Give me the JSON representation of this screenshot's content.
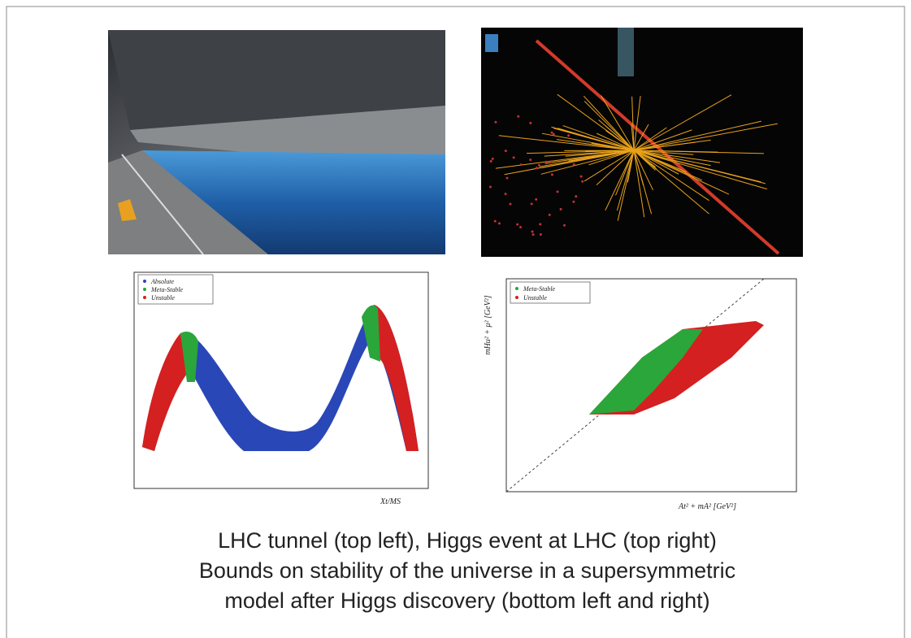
{
  "bottom_left": {
    "legend": [
      "Absolute",
      "Meta-Stable",
      "Unstable"
    ],
    "x_label": "Xt/MS"
  },
  "bottom_right": {
    "legend": [
      "Meta-Stable",
      "Unstable"
    ],
    "x_label": "At² + mA² [GeV²]",
    "y_label": "mHu² + μ² [GeV²]"
  },
  "caption": [
    "LHC tunnel (top left), Higgs event at LHC (top right)",
    "Bounds on stability of the universe in a supersymmetric",
    "model after Higgs discovery (bottom left and right)"
  ]
}
